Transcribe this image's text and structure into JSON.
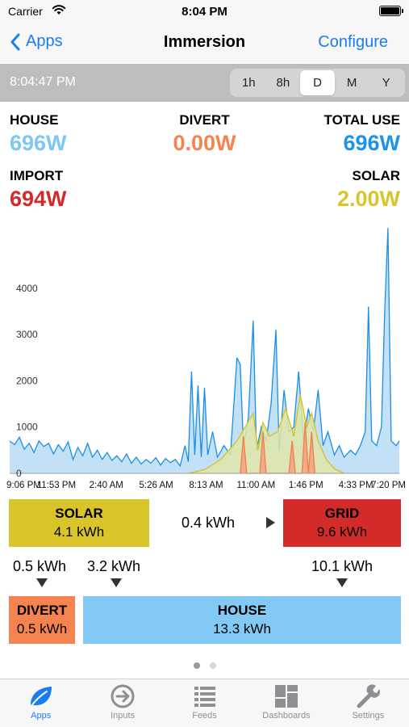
{
  "status_bar": {
    "carrier": "Carrier",
    "time": "8:04 PM"
  },
  "nav": {
    "back_label": "Apps",
    "title": "Immersion",
    "right_label": "Configure"
  },
  "range_bar": {
    "current_time": "8:04:47 PM",
    "options": [
      "1h",
      "8h",
      "D",
      "M",
      "Y"
    ],
    "selected": "D"
  },
  "stats": {
    "house": {
      "label": "HOUSE",
      "value": "696W",
      "color": "#7cc8f4"
    },
    "divert": {
      "label": "DIVERT",
      "value": "0.00W",
      "color": "#f5834f"
    },
    "total_use": {
      "label": "TOTAL USE",
      "value": "696W",
      "color": "#1b94e9"
    },
    "import": {
      "label": "IMPORT",
      "value": "694W",
      "color": "#d32a2a"
    },
    "solar": {
      "label": "SOLAR",
      "value": "2.00W",
      "color": "#d9c42a"
    }
  },
  "chart_data": {
    "type": "area",
    "x_tick_labels": [
      "9:06 PM",
      "11:53 PM",
      "2:40 AM",
      "5:26 AM",
      "8:13 AM",
      "11:00 AM",
      "1:46 PM",
      "4:33 PM",
      "7:20 PM"
    ],
    "y_tick_labels": [
      "0",
      "1000",
      "2000",
      "3000",
      "4000"
    ],
    "ylim": [
      0,
      5200
    ],
    "xlim": [
      0,
      24
    ],
    "grid": false,
    "series": [
      {
        "name": "HOUSE",
        "color": "#1b8fe6",
        "fill": "#b8dcf4",
        "points": [
          [
            0,
            700
          ],
          [
            0.3,
            620
          ],
          [
            0.6,
            780
          ],
          [
            0.9,
            520
          ],
          [
            1.2,
            650
          ],
          [
            1.5,
            450
          ],
          [
            1.8,
            700
          ],
          [
            2.1,
            580
          ],
          [
            2.4,
            650
          ],
          [
            2.7,
            420
          ],
          [
            3.0,
            620
          ],
          [
            3.3,
            480
          ],
          [
            3.6,
            680
          ],
          [
            3.9,
            300
          ],
          [
            4.2,
            560
          ],
          [
            4.5,
            380
          ],
          [
            4.8,
            650
          ],
          [
            5.1,
            350
          ],
          [
            5.4,
            500
          ],
          [
            5.7,
            300
          ],
          [
            6.0,
            450
          ],
          [
            6.3,
            280
          ],
          [
            6.6,
            380
          ],
          [
            6.9,
            250
          ],
          [
            7.2,
            420
          ],
          [
            7.5,
            220
          ],
          [
            7.8,
            350
          ],
          [
            8.1,
            200
          ],
          [
            8.4,
            300
          ],
          [
            8.7,
            220
          ],
          [
            9.0,
            340
          ],
          [
            9.3,
            180
          ],
          [
            9.6,
            320
          ],
          [
            9.9,
            230
          ],
          [
            10.2,
            300
          ],
          [
            10.5,
            160
          ],
          [
            10.8,
            600
          ],
          [
            11.0,
            250
          ],
          [
            11.2,
            2200
          ],
          [
            11.4,
            400
          ],
          [
            11.6,
            1900
          ],
          [
            11.8,
            350
          ],
          [
            12.0,
            1850
          ],
          [
            12.2,
            400
          ],
          [
            12.5,
            900
          ],
          [
            12.8,
            350
          ],
          [
            13.2,
            600
          ],
          [
            13.6,
            400
          ],
          [
            14.0,
            2500
          ],
          [
            14.2,
            2350
          ],
          [
            14.4,
            600
          ],
          [
            14.7,
            1200
          ],
          [
            15.0,
            3300
          ],
          [
            15.2,
            500
          ],
          [
            15.5,
            1000
          ],
          [
            15.8,
            700
          ],
          [
            16.1,
            1500
          ],
          [
            16.4,
            3100
          ],
          [
            16.6,
            500
          ],
          [
            16.9,
            1800
          ],
          [
            17.2,
            900
          ],
          [
            17.5,
            1000
          ],
          [
            17.8,
            2200
          ],
          [
            18.1,
            700
          ],
          [
            18.4,
            1400
          ],
          [
            18.7,
            900
          ],
          [
            19.0,
            1800
          ],
          [
            19.3,
            600
          ],
          [
            19.6,
            900
          ],
          [
            20.0,
            400
          ],
          [
            20.3,
            600
          ],
          [
            20.6,
            350
          ],
          [
            21.0,
            500
          ],
          [
            21.3,
            400
          ],
          [
            21.6,
            600
          ],
          [
            21.9,
            900
          ],
          [
            22.1,
            3600
          ],
          [
            22.3,
            700
          ],
          [
            22.6,
            600
          ],
          [
            22.9,
            1000
          ],
          [
            23.1,
            3500
          ],
          [
            23.3,
            5300
          ],
          [
            23.5,
            700
          ],
          [
            23.8,
            600
          ],
          [
            24.0,
            700
          ]
        ]
      },
      {
        "name": "SOLAR",
        "color": "#d6c11e",
        "fill": "#dfe6a8",
        "points": [
          [
            11.0,
            0
          ],
          [
            12.0,
            80
          ],
          [
            13.0,
            300
          ],
          [
            14.0,
            700
          ],
          [
            14.5,
            1000
          ],
          [
            15.0,
            1300
          ],
          [
            15.3,
            500
          ],
          [
            15.6,
            1100
          ],
          [
            16.0,
            800
          ],
          [
            16.5,
            900
          ],
          [
            17.0,
            1400
          ],
          [
            17.5,
            800
          ],
          [
            17.9,
            1700
          ],
          [
            18.3,
            1000
          ],
          [
            18.6,
            1300
          ],
          [
            19.0,
            700
          ],
          [
            19.5,
            300
          ],
          [
            20.0,
            100
          ],
          [
            20.6,
            0
          ]
        ]
      },
      {
        "name": "DIVERT",
        "color": "#f0804a",
        "fill": "#f4a080",
        "points": [
          [
            14.2,
            0
          ],
          [
            14.4,
            800
          ],
          [
            14.6,
            0
          ],
          [
            15.4,
            0
          ],
          [
            15.6,
            900
          ],
          [
            15.8,
            0
          ],
          [
            17.2,
            0
          ],
          [
            17.4,
            700
          ],
          [
            17.6,
            0
          ],
          [
            18.0,
            0
          ],
          [
            18.2,
            1100
          ],
          [
            18.4,
            0
          ],
          [
            18.6,
            900
          ],
          [
            18.8,
            0
          ]
        ]
      }
    ]
  },
  "summary": {
    "solar": {
      "title": "SOLAR",
      "value": "4.1 kWh",
      "color": "#d9c42a"
    },
    "grid": {
      "title": "GRID",
      "value": "9.6 kWh",
      "color": "#d32a2a"
    },
    "divert": {
      "title": "DIVERT",
      "value": "0.5 kWh",
      "color": "#f5834f"
    },
    "house": {
      "title": "HOUSE",
      "value": "13.3 kWh",
      "color": "#82c9f5"
    },
    "solar_to_grid": "0.4 kWh",
    "solar_to_divert": "0.5 kWh",
    "solar_to_house": "3.2 kWh",
    "grid_to_house": "10.1 kWh"
  },
  "page_dots": {
    "count": 2,
    "active_index": 0
  },
  "tab_bar": {
    "items": [
      {
        "label": "Apps",
        "icon": "leaf-icon"
      },
      {
        "label": "Inputs",
        "icon": "arrow-right-circle-icon"
      },
      {
        "label": "Feeds",
        "icon": "list-icon"
      },
      {
        "label": "Dashboards",
        "icon": "dashboard-grid-icon"
      },
      {
        "label": "Settings",
        "icon": "wrench-icon"
      }
    ],
    "active_index": 0
  }
}
